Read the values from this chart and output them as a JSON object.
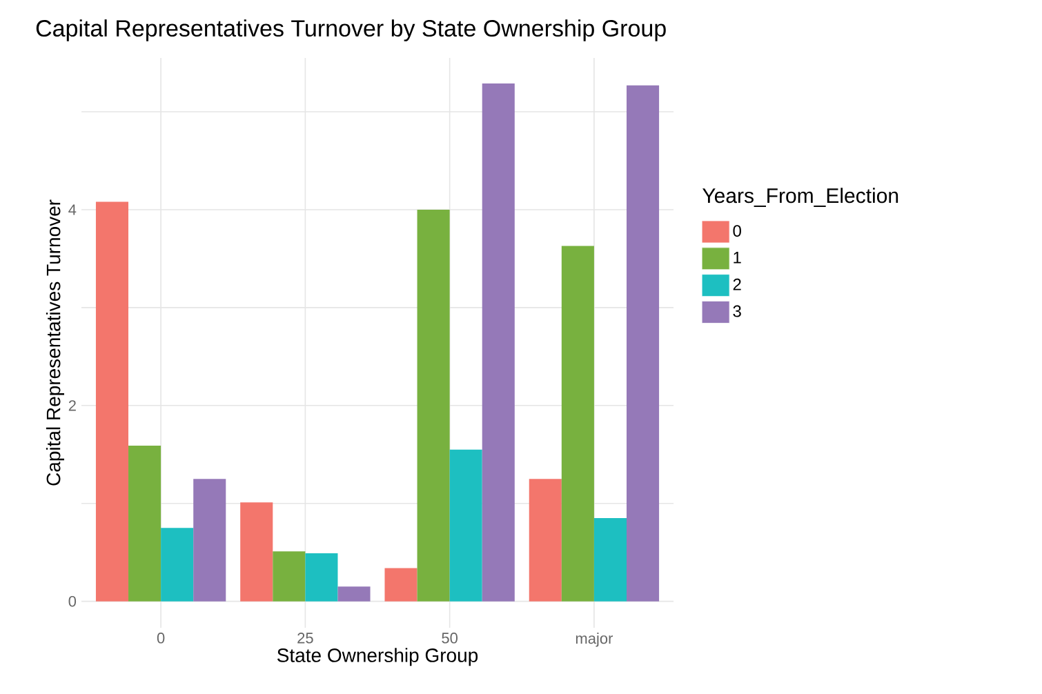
{
  "chart_data": {
    "type": "bar",
    "title": "Capital Representatives Turnover by State Ownership Group",
    "xlabel": "State Ownership Group",
    "ylabel": "Capital Representatives Turnover",
    "legend_title": "Years_From_Election",
    "categories": [
      "0",
      "25",
      "50",
      "major"
    ],
    "series": [
      {
        "name": "0",
        "color": "#f3766c",
        "values": [
          4.08,
          1.01,
          0.34,
          1.25
        ]
      },
      {
        "name": "1",
        "color": "#78b13f",
        "values": [
          1.59,
          0.51,
          4.0,
          3.63
        ]
      },
      {
        "name": "2",
        "color": "#1dbfc1",
        "values": [
          0.75,
          0.49,
          1.55,
          0.85
        ]
      },
      {
        "name": "3",
        "color": "#9579b8",
        "values": [
          1.25,
          0.15,
          5.29,
          5.27
        ]
      }
    ],
    "ylim": [
      -0.27,
      5.55
    ],
    "yticks": [
      0,
      {
        "value": 1,
        "label": null
      },
      2,
      {
        "value": 3,
        "label": null
      },
      4,
      {
        "value": 5,
        "label": null
      }
    ],
    "grid": true,
    "legend": "right"
  }
}
